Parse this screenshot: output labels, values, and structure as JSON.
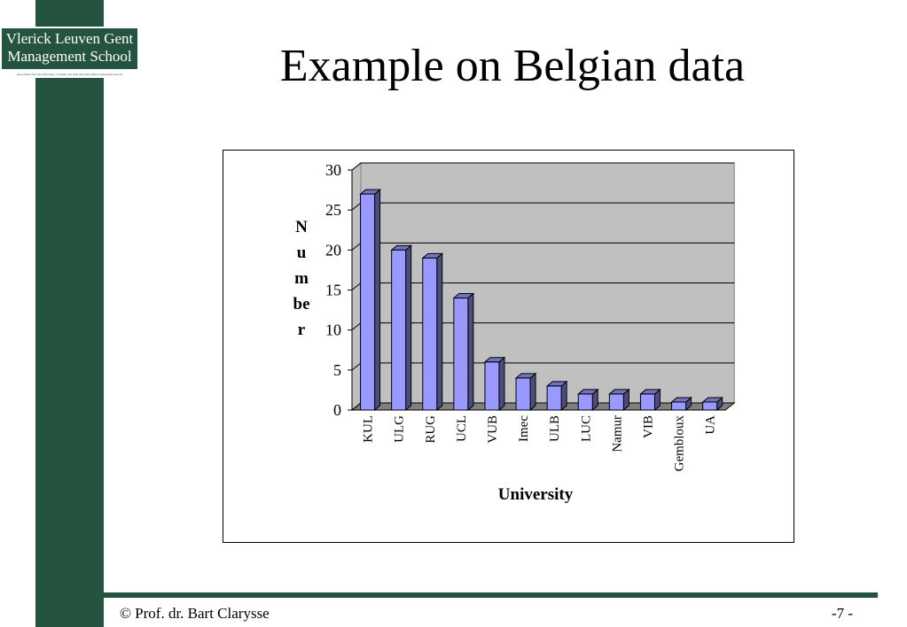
{
  "logo": {
    "line1": "Vlerick Leuven Gent",
    "line2": "Management School",
    "tagline": "Associated with the University of Ghent and with the Katholieke Universiteit Leuven"
  },
  "title": "Example on Belgian data",
  "footer": {
    "author": "© Prof. dr. Bart Clarysse",
    "page": "-7 -"
  },
  "chart_data": {
    "type": "bar",
    "x_label": "University",
    "y_label": "Number",
    "categories": [
      "KUL",
      "ULG",
      "RUG",
      "UCL",
      "VUB",
      "Imec",
      "ULB",
      "LUC",
      "Namur",
      "VIB",
      "Gembloux",
      "UA"
    ],
    "values": [
      27,
      20,
      19,
      14,
      6,
      4,
      3,
      2,
      2,
      2,
      1,
      1
    ],
    "color": "#9999ff",
    "ylim": [
      0,
      30
    ],
    "yticks": [
      0,
      5,
      10,
      15,
      20,
      25,
      30
    ],
    "grid": true
  }
}
